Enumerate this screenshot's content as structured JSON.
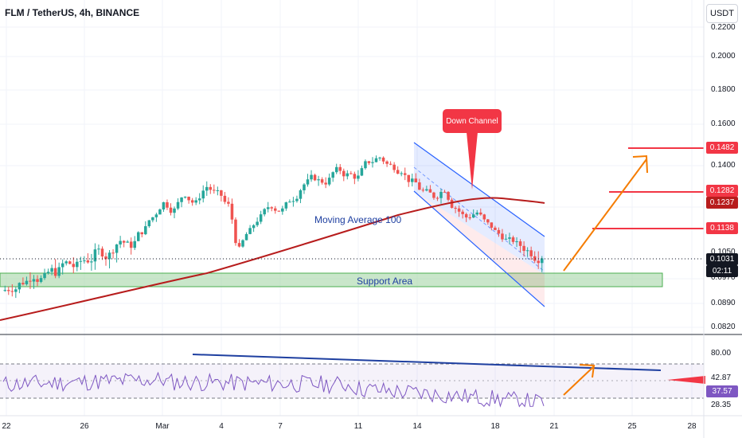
{
  "header": {
    "title": "FLM / TetherUS, 4h, BINANCE",
    "currency_button": "USDT"
  },
  "price_axis": {
    "ticks": [
      "0.2200",
      "0.2000",
      "0.1800",
      "0.1600",
      "0.1400",
      "0.1050",
      "0.0970",
      "0.0890",
      "0.0820"
    ]
  },
  "price_tags": {
    "level_1482": "0.1482",
    "level_1282": "0.1282",
    "level_1237": "0.1237",
    "level_1138": "0.1138",
    "last_price": "0.1031",
    "countdown": "02:11"
  },
  "rsi_axis": {
    "ticks": [
      "80.00",
      "42.87",
      "28.35"
    ],
    "rsi_value": "37.57"
  },
  "date_axis": {
    "ticks": [
      "22",
      "26",
      "Mar",
      "4",
      "7",
      "11",
      "14",
      "18",
      "21",
      "25",
      "28"
    ]
  },
  "annotations": {
    "down_channel": "Down Channel",
    "moving_average": "Moving Average 100",
    "support_area": "Support Area"
  },
  "colors": {
    "bull": "#26a69a",
    "bear": "#ef5350",
    "ma_line": "#b71c1c",
    "channel": "#2962ff",
    "support_fill": "#a5d6a7",
    "arrow": "#f57c00",
    "resistance": "#f23645",
    "rsi_line": "#7e57c2"
  },
  "chart_data": {
    "type": "candlestick",
    "symbol": "FLM / TetherUS",
    "interval": "4h",
    "exchange": "BINANCE",
    "close_approx": [
      0.094,
      0.096,
      0.098,
      0.097,
      0.099,
      0.101,
      0.1,
      0.102,
      0.104,
      0.103,
      0.108,
      0.106,
      0.112,
      0.118,
      0.124,
      0.121,
      0.128,
      0.124,
      0.131,
      0.128,
      0.123,
      0.104,
      0.112,
      0.118,
      0.123,
      0.121,
      0.126,
      0.132,
      0.135,
      0.133,
      0.138,
      0.136,
      0.135,
      0.142,
      0.144,
      0.14,
      0.138,
      0.133,
      0.129,
      0.127,
      0.13,
      0.122,
      0.118,
      0.12,
      0.115,
      0.111,
      0.108,
      0.106,
      0.104,
      0.103
    ],
    "last_price": 0.1031,
    "levels": [
      0.1482,
      0.1282,
      0.1237,
      0.1138
    ],
    "support_area": [
      0.0955,
      0.1005
    ],
    "indicators": [
      "Moving Average 100",
      "RSI"
    ],
    "rsi_last": 37.57
  }
}
